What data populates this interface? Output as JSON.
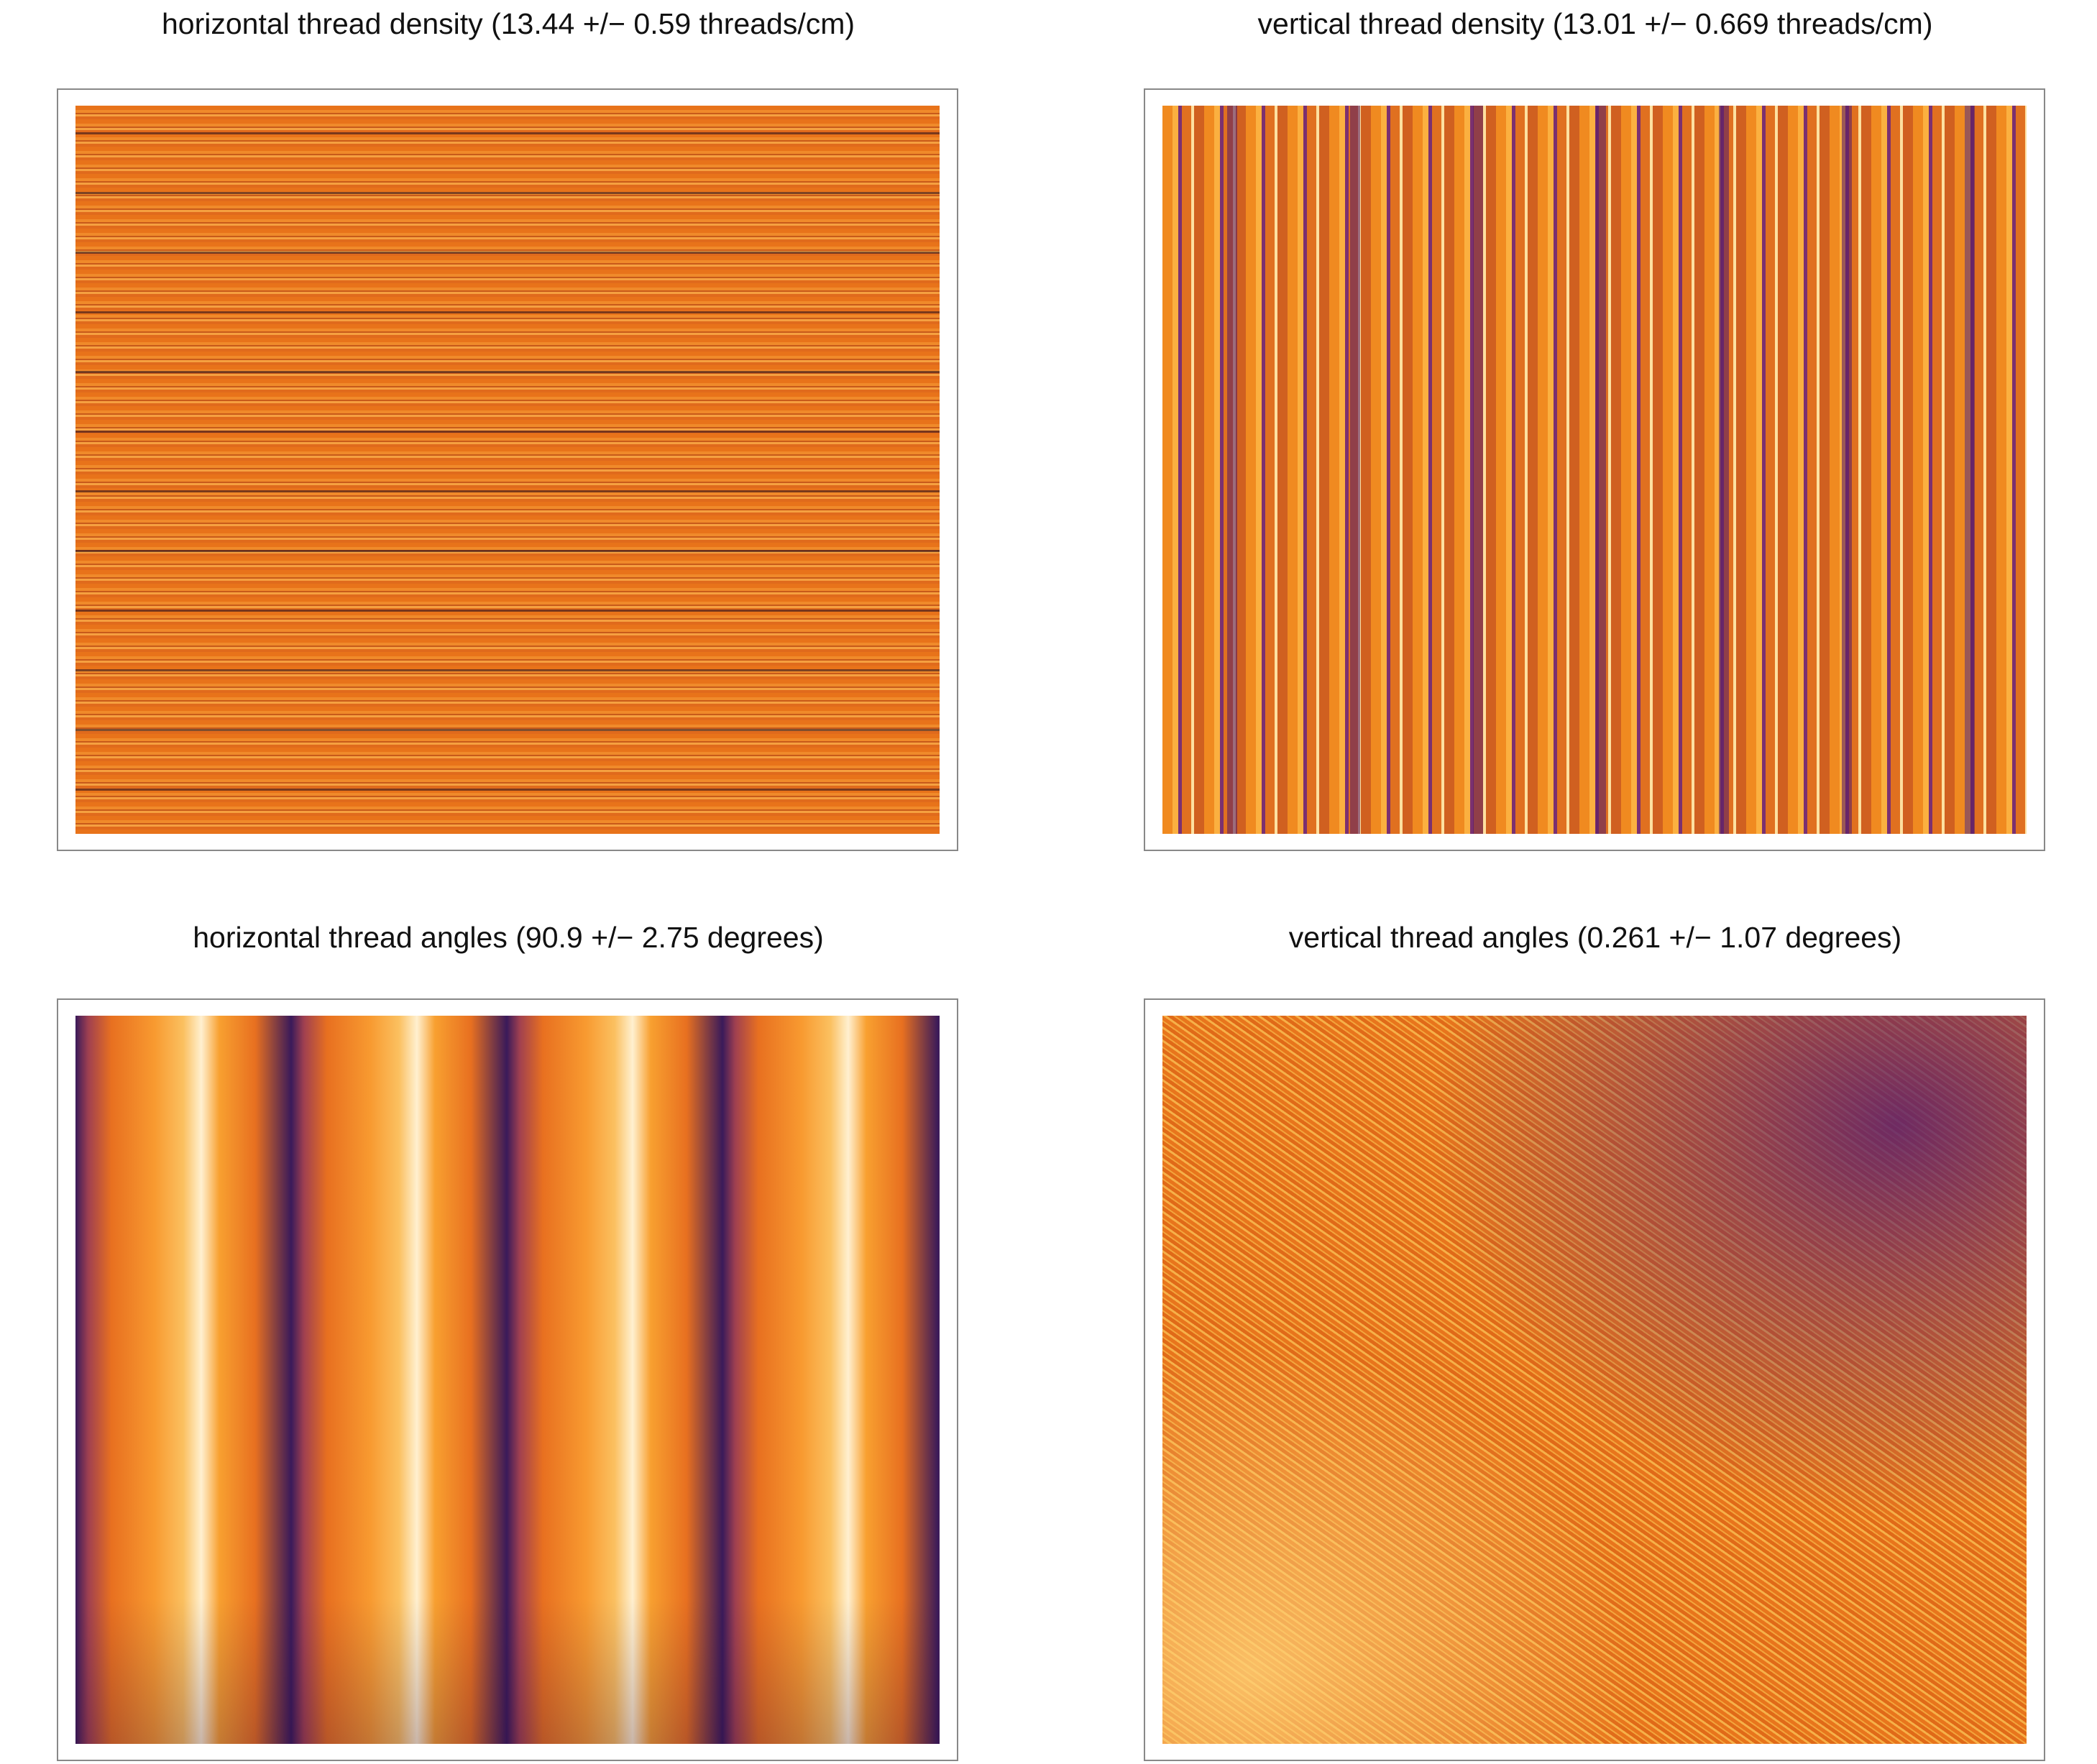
{
  "chart_data": [
    {
      "type": "heatmap",
      "title": "horizontal thread density (13.44 +/− 0.59 threads/cm)"
    },
    {
      "type": "heatmap",
      "title": "vertical thread density (13.01 +/− 0.669 threads/cm)"
    },
    {
      "type": "heatmap",
      "title": "horizontal thread angles (90.9 +/− 2.75 degrees)"
    },
    {
      "type": "heatmap",
      "title": "vertical thread angles (0.261 +/− 1.07 degrees)"
    }
  ]
}
